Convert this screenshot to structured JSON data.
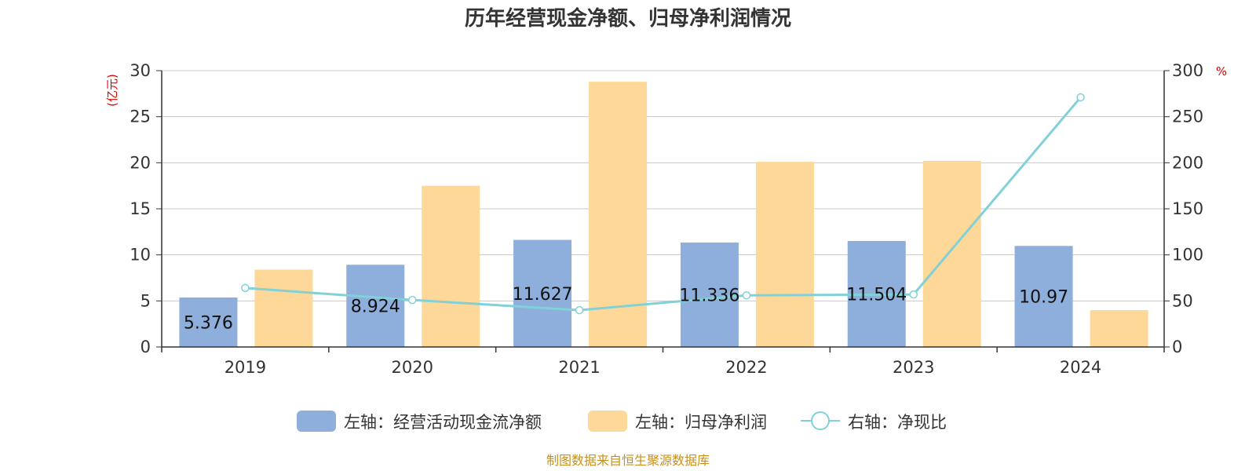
{
  "chart_data": {
    "type": "bar",
    "title": "历年经营现金净额、归母净利润情况",
    "categories": [
      "2019",
      "2020",
      "2021",
      "2022",
      "2023",
      "2024"
    ],
    "y_left": {
      "unit": "(亿元)",
      "min": 0,
      "max": 30,
      "ticks": [
        "0",
        "5",
        "10",
        "15",
        "20",
        "25",
        "30"
      ]
    },
    "y_right": {
      "unit": "%",
      "min": 0,
      "max": 300,
      "ticks": [
        "0",
        "50",
        "100",
        "150",
        "200",
        "250",
        "300"
      ]
    },
    "grid": true,
    "legend_position": "bottom",
    "series": [
      {
        "name": "左轴：经营活动现金流净额",
        "kind": "bar",
        "axis": "left",
        "color": "#8eaedb",
        "values": [
          5.376,
          8.924,
          11.627,
          11.336,
          11.504,
          10.97
        ],
        "labels": [
          "5.376",
          "8.924",
          "11.627",
          "11.336",
          "11.504",
          "10.97"
        ]
      },
      {
        "name": "左轴：归母净利润",
        "kind": "bar",
        "axis": "left",
        "color": "#fed898",
        "values": [
          8.4,
          17.5,
          28.8,
          20.1,
          20.2,
          4.0
        ]
      },
      {
        "name": "右轴：净现比",
        "kind": "line",
        "axis": "right",
        "color": "#82d1d7",
        "values": [
          64,
          51,
          40,
          56,
          57,
          271
        ]
      }
    ],
    "source": "制图数据来自恒生聚源数据库"
  }
}
